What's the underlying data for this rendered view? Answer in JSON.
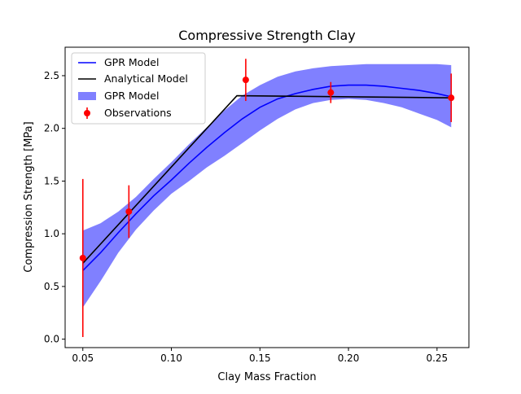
{
  "chart_data": {
    "type": "line",
    "title": "Compressive Strength Clay",
    "xlabel": "Clay Mass Fraction",
    "ylabel": "Compression Strength [MPa]",
    "xlim": [
      0.04,
      0.268
    ],
    "ylim": [
      -0.08,
      2.77
    ],
    "xticks": [
      0.05,
      0.1,
      0.15,
      0.2,
      0.25
    ],
    "xtick_labels": [
      "0.05",
      "0.10",
      "0.15",
      "0.20",
      "0.25"
    ],
    "yticks": [
      0.0,
      0.5,
      1.0,
      1.5,
      2.0,
      2.5
    ],
    "ytick_labels": [
      "0.0",
      "0.5",
      "1.0",
      "1.5",
      "2.0",
      "2.5"
    ],
    "grid": false,
    "legend_position": "top-left",
    "legend": [
      "GPR Model",
      "Analytical Model",
      "GPR Model",
      "Observations"
    ],
    "series": [
      {
        "name": "GPR Model",
        "kind": "line",
        "color": "#0000ff",
        "x": [
          0.05,
          0.06,
          0.07,
          0.08,
          0.09,
          0.1,
          0.11,
          0.12,
          0.13,
          0.14,
          0.15,
          0.16,
          0.17,
          0.18,
          0.19,
          0.2,
          0.21,
          0.22,
          0.23,
          0.24,
          0.25,
          0.258
        ],
        "y": [
          0.65,
          0.82,
          1.01,
          1.19,
          1.36,
          1.51,
          1.67,
          1.82,
          1.96,
          2.09,
          2.2,
          2.28,
          2.33,
          2.37,
          2.4,
          2.41,
          2.41,
          2.4,
          2.38,
          2.36,
          2.33,
          2.3
        ]
      },
      {
        "name": "Analytical Model",
        "kind": "line",
        "color": "#000000",
        "x": [
          0.05,
          0.137,
          0.258
        ],
        "y": [
          0.72,
          2.31,
          2.29
        ]
      },
      {
        "name": "GPR Model",
        "kind": "band",
        "color": "#8080ff",
        "x": [
          0.05,
          0.06,
          0.07,
          0.08,
          0.09,
          0.1,
          0.11,
          0.12,
          0.13,
          0.14,
          0.15,
          0.16,
          0.17,
          0.18,
          0.19,
          0.2,
          0.21,
          0.22,
          0.23,
          0.24,
          0.25,
          0.258
        ],
        "lower": [
          0.3,
          0.55,
          0.82,
          1.04,
          1.22,
          1.38,
          1.5,
          1.63,
          1.74,
          1.86,
          1.98,
          2.09,
          2.18,
          2.24,
          2.27,
          2.28,
          2.27,
          2.24,
          2.2,
          2.14,
          2.08,
          2.01
        ],
        "upper": [
          1.03,
          1.1,
          1.21,
          1.35,
          1.52,
          1.68,
          1.85,
          2.01,
          2.17,
          2.31,
          2.41,
          2.49,
          2.54,
          2.57,
          2.59,
          2.6,
          2.61,
          2.61,
          2.61,
          2.61,
          2.61,
          2.6
        ]
      },
      {
        "name": "Observations",
        "kind": "errorbar",
        "color": "#ff0000",
        "x": [
          0.05,
          0.076,
          0.142,
          0.19,
          0.258
        ],
        "y": [
          0.77,
          1.21,
          2.46,
          2.34,
          2.29
        ],
        "yerr": [
          0.75,
          0.25,
          0.2,
          0.1,
          0.23
        ]
      }
    ]
  }
}
